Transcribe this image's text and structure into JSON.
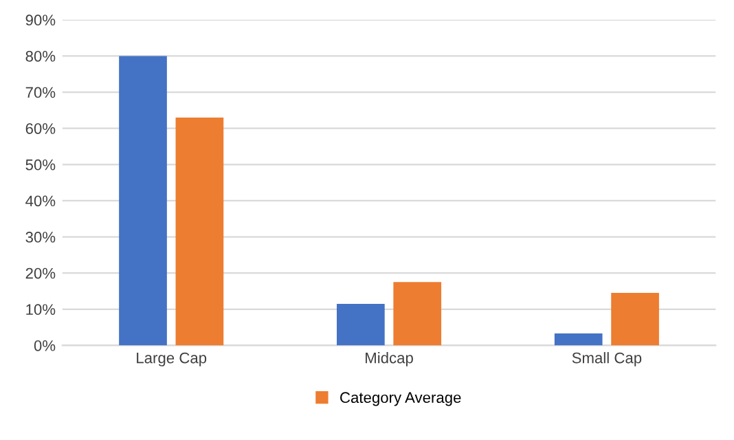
{
  "chart_data": {
    "type": "bar",
    "categories": [
      "Large Cap",
      "Midcap",
      "Small Cap"
    ],
    "series": [
      {
        "color": "#4472c4",
        "values": [
          80,
          11.5,
          3.3
        ]
      },
      {
        "name": "Category Average",
        "color": "#ed7d31",
        "values": [
          63,
          17.5,
          14.5
        ]
      }
    ],
    "ylim": [
      0,
      90
    ],
    "yticks": [
      {
        "value": 0,
        "label": "0%"
      },
      {
        "value": 10,
        "label": "10%"
      },
      {
        "value": 20,
        "label": "20%"
      },
      {
        "value": 30,
        "label": "30%"
      },
      {
        "value": 40,
        "label": "40%"
      },
      {
        "value": 50,
        "label": "50%"
      },
      {
        "value": 60,
        "label": "60%"
      },
      {
        "value": 70,
        "label": "70%"
      },
      {
        "value": 80,
        "label": "80%"
      },
      {
        "value": 90,
        "label": "90%"
      }
    ],
    "grid": "y",
    "legend": "bottom"
  }
}
